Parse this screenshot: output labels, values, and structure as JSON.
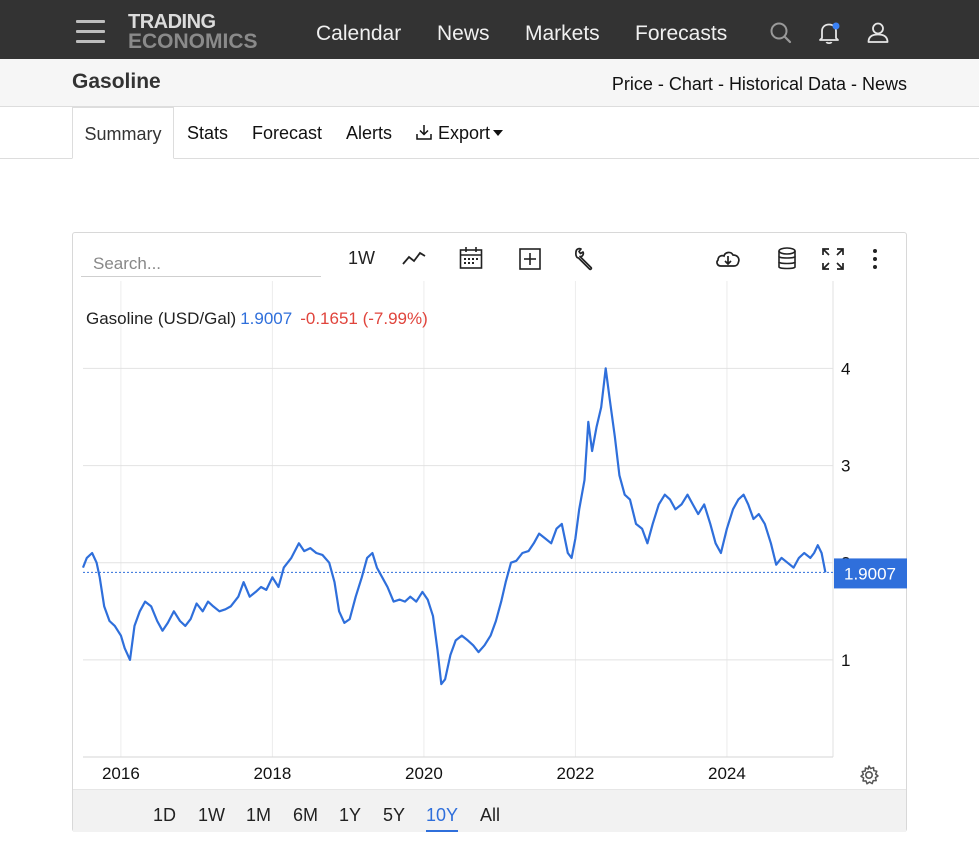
{
  "header": {
    "logo_line1": "TRADING",
    "logo_line2": "ECONOMICS",
    "nav": [
      "Calendar",
      "News",
      "Markets",
      "Forecasts"
    ]
  },
  "subheader": {
    "title": "Gasoline",
    "links": [
      "Price",
      "Chart",
      "Historical Data",
      "News"
    ],
    "separator": " - "
  },
  "tabs": {
    "summary": "Summary",
    "stats": "Stats",
    "forecast": "Forecast",
    "alerts": "Alerts",
    "export": "Export"
  },
  "toolbar": {
    "search_placeholder": "Search...",
    "interval": "1W"
  },
  "legend": {
    "name": "Gasoline (USD/Gal)",
    "price": "1.9007",
    "change": "-0.1651 (-7.99%)"
  },
  "range_buttons": [
    "1D",
    "1W",
    "1M",
    "6M",
    "1Y",
    "5Y",
    "10Y",
    "All"
  ],
  "range_active": "10Y",
  "colors": {
    "line": "#2f6fdb",
    "price_label_bg": "#2f6fdb",
    "change": "#e0443c",
    "topbar": "#333333"
  },
  "chart_data": {
    "type": "line",
    "title": "",
    "xlabel": "",
    "ylabel": "",
    "x_ticks": [
      "2016",
      "2018",
      "2020",
      "2022",
      "2024"
    ],
    "y_ticks": [
      "1",
      "2",
      "3",
      "4"
    ],
    "ylim": [
      0,
      4.9
    ],
    "xlim": [
      2015.5,
      2025.4
    ],
    "last_value": "1.9007",
    "grid": true,
    "series": [
      {
        "name": "Gasoline (USD/Gal)",
        "points": [
          [
            2015.5,
            1.95
          ],
          [
            2015.55,
            2.05
          ],
          [
            2015.62,
            2.1
          ],
          [
            2015.68,
            2.0
          ],
          [
            2015.72,
            1.85
          ],
          [
            2015.78,
            1.55
          ],
          [
            2015.85,
            1.4
          ],
          [
            2015.92,
            1.35
          ],
          [
            2016.0,
            1.25
          ],
          [
            2016.05,
            1.12
          ],
          [
            2016.12,
            1.0
          ],
          [
            2016.18,
            1.35
          ],
          [
            2016.25,
            1.5
          ],
          [
            2016.32,
            1.6
          ],
          [
            2016.4,
            1.55
          ],
          [
            2016.48,
            1.4
          ],
          [
            2016.55,
            1.3
          ],
          [
            2016.62,
            1.38
          ],
          [
            2016.7,
            1.5
          ],
          [
            2016.78,
            1.4
          ],
          [
            2016.85,
            1.35
          ],
          [
            2016.92,
            1.42
          ],
          [
            2017.0,
            1.58
          ],
          [
            2017.08,
            1.5
          ],
          [
            2017.15,
            1.6
          ],
          [
            2017.22,
            1.55
          ],
          [
            2017.3,
            1.5
          ],
          [
            2017.38,
            1.52
          ],
          [
            2017.45,
            1.55
          ],
          [
            2017.55,
            1.65
          ],
          [
            2017.62,
            1.8
          ],
          [
            2017.7,
            1.65
          ],
          [
            2017.78,
            1.7
          ],
          [
            2017.85,
            1.75
          ],
          [
            2017.92,
            1.72
          ],
          [
            2018.0,
            1.85
          ],
          [
            2018.08,
            1.75
          ],
          [
            2018.15,
            1.95
          ],
          [
            2018.25,
            2.05
          ],
          [
            2018.35,
            2.2
          ],
          [
            2018.42,
            2.12
          ],
          [
            2018.5,
            2.15
          ],
          [
            2018.58,
            2.1
          ],
          [
            2018.66,
            2.08
          ],
          [
            2018.75,
            2.0
          ],
          [
            2018.82,
            1.8
          ],
          [
            2018.88,
            1.5
          ],
          [
            2018.95,
            1.38
          ],
          [
            2019.02,
            1.42
          ],
          [
            2019.1,
            1.65
          ],
          [
            2019.18,
            1.85
          ],
          [
            2019.25,
            2.05
          ],
          [
            2019.32,
            2.1
          ],
          [
            2019.38,
            1.95
          ],
          [
            2019.45,
            1.85
          ],
          [
            2019.52,
            1.75
          ],
          [
            2019.6,
            1.6
          ],
          [
            2019.68,
            1.62
          ],
          [
            2019.75,
            1.6
          ],
          [
            2019.82,
            1.65
          ],
          [
            2019.9,
            1.6
          ],
          [
            2019.98,
            1.7
          ],
          [
            2020.05,
            1.62
          ],
          [
            2020.12,
            1.45
          ],
          [
            2020.18,
            1.1
          ],
          [
            2020.23,
            0.75
          ],
          [
            2020.28,
            0.8
          ],
          [
            2020.35,
            1.05
          ],
          [
            2020.42,
            1.2
          ],
          [
            2020.5,
            1.25
          ],
          [
            2020.58,
            1.2
          ],
          [
            2020.65,
            1.15
          ],
          [
            2020.72,
            1.08
          ],
          [
            2020.8,
            1.15
          ],
          [
            2020.88,
            1.25
          ],
          [
            2020.95,
            1.4
          ],
          [
            2021.02,
            1.6
          ],
          [
            2021.08,
            1.8
          ],
          [
            2021.15,
            2.0
          ],
          [
            2021.22,
            2.02
          ],
          [
            2021.3,
            2.1
          ],
          [
            2021.38,
            2.12
          ],
          [
            2021.45,
            2.2
          ],
          [
            2021.52,
            2.3
          ],
          [
            2021.6,
            2.25
          ],
          [
            2021.68,
            2.2
          ],
          [
            2021.75,
            2.35
          ],
          [
            2021.82,
            2.4
          ],
          [
            2021.9,
            2.1
          ],
          [
            2021.95,
            2.05
          ],
          [
            2022.0,
            2.25
          ],
          [
            2022.05,
            2.55
          ],
          [
            2022.12,
            2.85
          ],
          [
            2022.17,
            3.45
          ],
          [
            2022.22,
            3.15
          ],
          [
            2022.28,
            3.4
          ],
          [
            2022.34,
            3.6
          ],
          [
            2022.4,
            4.0
          ],
          [
            2022.45,
            3.7
          ],
          [
            2022.52,
            3.3
          ],
          [
            2022.58,
            2.9
          ],
          [
            2022.65,
            2.7
          ],
          [
            2022.72,
            2.65
          ],
          [
            2022.8,
            2.4
          ],
          [
            2022.88,
            2.35
          ],
          [
            2022.95,
            2.2
          ],
          [
            2023.02,
            2.4
          ],
          [
            2023.1,
            2.6
          ],
          [
            2023.18,
            2.7
          ],
          [
            2023.25,
            2.65
          ],
          [
            2023.32,
            2.55
          ],
          [
            2023.4,
            2.6
          ],
          [
            2023.48,
            2.7
          ],
          [
            2023.55,
            2.6
          ],
          [
            2023.62,
            2.5
          ],
          [
            2023.7,
            2.6
          ],
          [
            2023.78,
            2.4
          ],
          [
            2023.85,
            2.2
          ],
          [
            2023.92,
            2.1
          ],
          [
            2024.0,
            2.35
          ],
          [
            2024.08,
            2.55
          ],
          [
            2024.15,
            2.65
          ],
          [
            2024.22,
            2.7
          ],
          [
            2024.28,
            2.6
          ],
          [
            2024.35,
            2.45
          ],
          [
            2024.42,
            2.5
          ],
          [
            2024.5,
            2.4
          ],
          [
            2024.58,
            2.2
          ],
          [
            2024.65,
            1.98
          ],
          [
            2024.72,
            2.05
          ],
          [
            2024.8,
            2.0
          ],
          [
            2024.88,
            1.95
          ],
          [
            2024.95,
            2.05
          ],
          [
            2025.02,
            2.1
          ],
          [
            2025.1,
            2.05
          ],
          [
            2025.15,
            2.1
          ],
          [
            2025.2,
            2.18
          ],
          [
            2025.25,
            2.1
          ],
          [
            2025.3,
            1.9
          ]
        ]
      }
    ]
  }
}
